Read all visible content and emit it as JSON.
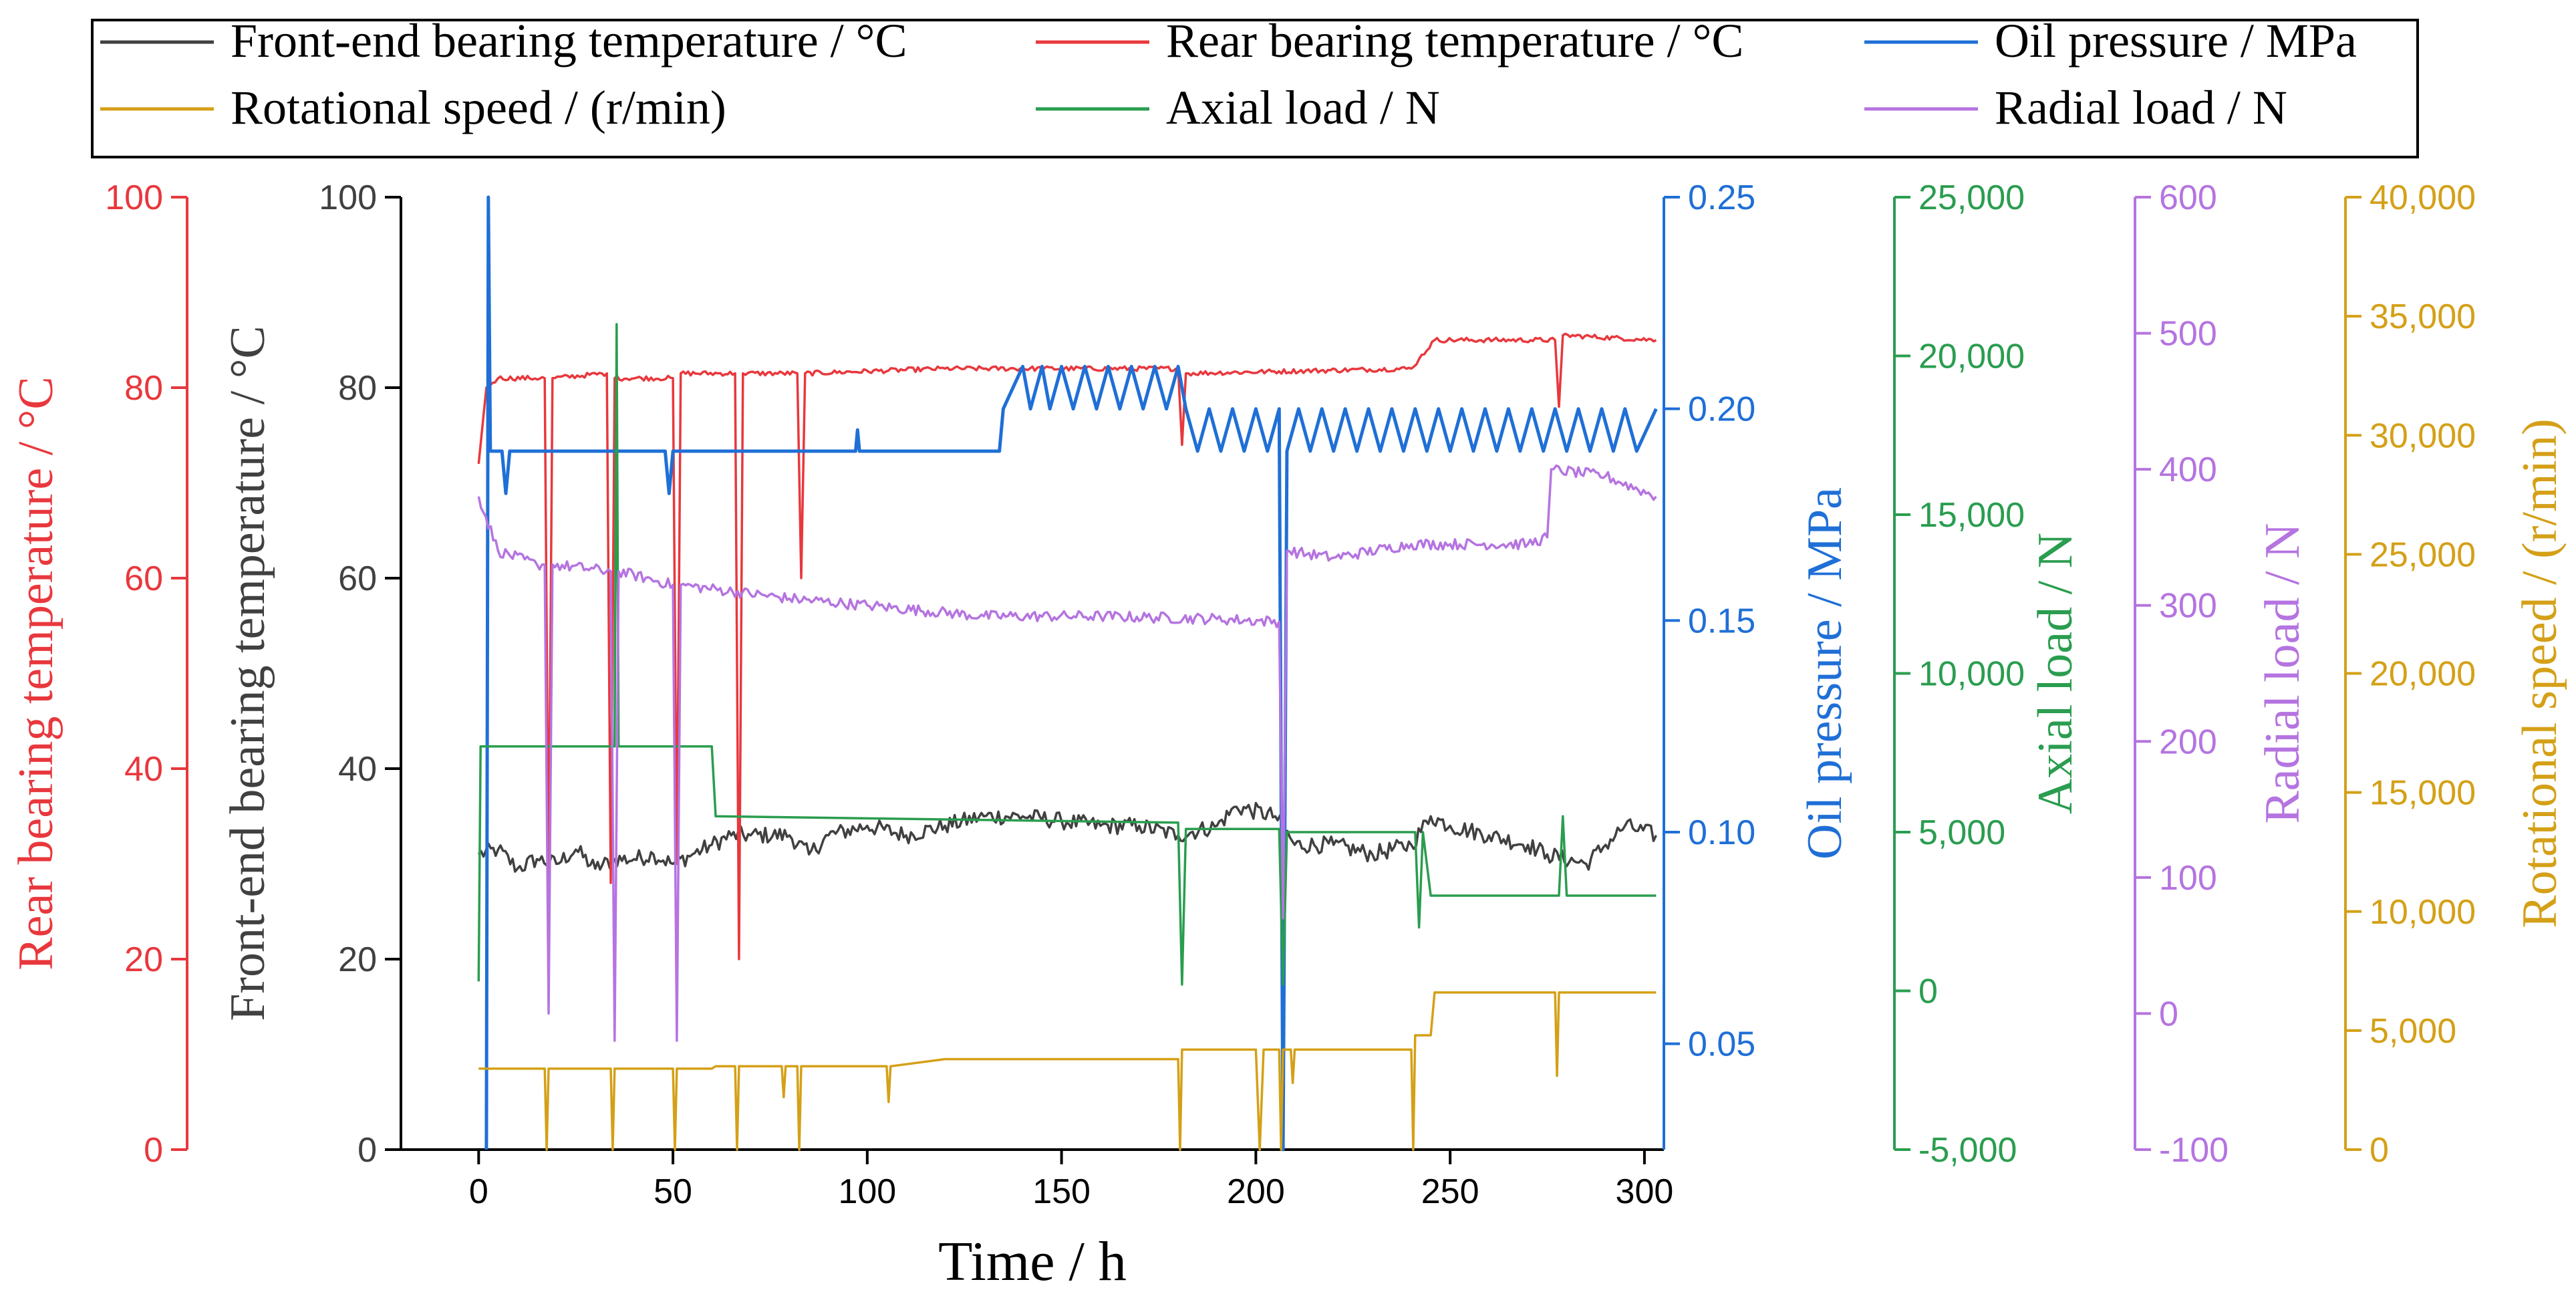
{
  "chart_data": {
    "type": "line",
    "title": "",
    "xlabel": "Time / h",
    "xlim": [
      -20,
      305
    ],
    "x_ticks": [
      0,
      50,
      100,
      150,
      200,
      250,
      300
    ],
    "legend": {
      "placement": "top",
      "entries": [
        {
          "label": "Front-end bearing temperature / °C",
          "series": "front"
        },
        {
          "label": "Rear bearing temperature / °C",
          "series": "rear"
        },
        {
          "label": "Oil pressure / MPa",
          "series": "oil"
        },
        {
          "label": "Rotational speed / (r/min)",
          "series": "speed"
        },
        {
          "label": "Axial load / N",
          "series": "axial"
        },
        {
          "label": "Radial load / N",
          "series": "radial"
        }
      ]
    },
    "axes": [
      {
        "id": "rear",
        "label": "Rear bearing temperature / °C",
        "color": "#e8383d",
        "range": [
          0,
          100
        ],
        "ticks": [
          "0",
          "20",
          "40",
          "60",
          "80",
          "100"
        ],
        "tick_values": [
          0,
          20,
          40,
          60,
          80,
          100
        ]
      },
      {
        "id": "front",
        "label": "Front-end bearing temperature / °C",
        "color": "#404040",
        "range": [
          0,
          100
        ],
        "ticks": [
          "0",
          "20",
          "40",
          "60",
          "80",
          "100"
        ],
        "tick_values": [
          0,
          20,
          40,
          60,
          80,
          100
        ]
      },
      {
        "id": "oil",
        "label": "Oil pressure / MPa",
        "color": "#1f6fd6",
        "range": [
          0.025,
          0.25
        ],
        "ticks": [
          "0.05",
          "0.10",
          "0.15",
          "0.20",
          "0.25"
        ],
        "tick_values": [
          0.05,
          0.1,
          0.15,
          0.2,
          0.25
        ]
      },
      {
        "id": "axial",
        "label": "Axial load / N",
        "color": "#2a9d4f",
        "range": [
          -5000,
          25000
        ],
        "ticks": [
          "-5,000",
          "0",
          "5,000",
          "10,000",
          "15,000",
          "20,000",
          "25,000"
        ],
        "tick_values": [
          -5000,
          0,
          5000,
          10000,
          15000,
          20000,
          25000
        ]
      },
      {
        "id": "radial",
        "label": "Radial load / N",
        "color": "#b574e0",
        "range": [
          -100,
          600
        ],
        "ticks": [
          "-100",
          "0",
          "100",
          "200",
          "300",
          "400",
          "500",
          "600"
        ],
        "tick_values": [
          -100,
          0,
          100,
          200,
          300,
          400,
          500,
          600
        ]
      },
      {
        "id": "speed",
        "label": "Rotational speed / (r/min)",
        "color": "#d4a017",
        "range": [
          0,
          40000
        ],
        "ticks": [
          "0",
          "5,000",
          "10,000",
          "15,000",
          "20,000",
          "25,000",
          "30,000",
          "35,000",
          "40,000"
        ],
        "tick_values": [
          0,
          5000,
          10000,
          15000,
          20000,
          25000,
          30000,
          35000,
          40000
        ]
      }
    ],
    "series": [
      {
        "name": "Front-end bearing temperature / °C",
        "id": "front",
        "axis": "front",
        "color": "#404040",
        "noise": 0.9,
        "points": [
          [
            0,
            31
          ],
          [
            5,
            31.5
          ],
          [
            10,
            29.5
          ],
          [
            15,
            30.5
          ],
          [
            20,
            30
          ],
          [
            25,
            31.5
          ],
          [
            30,
            29.5
          ],
          [
            35,
            30.5
          ],
          [
            40,
            30.5
          ],
          [
            45,
            31
          ],
          [
            50,
            30
          ],
          [
            55,
            31
          ],
          [
            60,
            32
          ],
          [
            65,
            33
          ],
          [
            70,
            33
          ],
          [
            80,
            33
          ],
          [
            85,
            31
          ],
          [
            90,
            33
          ],
          [
            100,
            34
          ],
          [
            110,
            33
          ],
          [
            120,
            34
          ],
          [
            130,
            35
          ],
          [
            140,
            35
          ],
          [
            150,
            34.5
          ],
          [
            160,
            34
          ],
          [
            170,
            34
          ],
          [
            180,
            33
          ],
          [
            190,
            34
          ],
          [
            195,
            36
          ],
          [
            205,
            35
          ],
          [
            210,
            32
          ],
          [
            220,
            32
          ],
          [
            230,
            31
          ],
          [
            240,
            32
          ],
          [
            245,
            35
          ],
          [
            250,
            34
          ],
          [
            260,
            33
          ],
          [
            270,
            32
          ],
          [
            275,
            31
          ],
          [
            285,
            30
          ],
          [
            290,
            32
          ],
          [
            295,
            34
          ],
          [
            303,
            33
          ]
        ]
      },
      {
        "name": "Rear bearing temperature / °C",
        "id": "rear",
        "axis": "rear",
        "color": "#e8383d",
        "noise": 0.25,
        "points": [
          [
            0,
            72
          ],
          [
            2,
            80
          ],
          [
            5,
            81
          ],
          [
            17,
            81
          ],
          [
            18,
            28
          ],
          [
            19,
            81
          ],
          [
            33,
            81.5
          ],
          [
            34,
            28
          ],
          [
            35,
            81
          ],
          [
            50,
            81
          ],
          [
            51,
            30
          ],
          [
            52,
            81.5
          ],
          [
            66,
            81.5
          ],
          [
            67,
            20
          ],
          [
            68,
            81.5
          ],
          [
            82,
            81.5
          ],
          [
            83,
            60
          ],
          [
            84,
            81.5
          ],
          [
            120,
            82
          ],
          [
            180,
            82
          ],
          [
            181,
            74
          ],
          [
            182,
            81.5
          ],
          [
            240,
            82
          ],
          [
            242,
            83
          ],
          [
            246,
            85
          ],
          [
            277,
            85
          ],
          [
            278,
            78
          ],
          [
            279,
            85.5
          ],
          [
            303,
            85
          ]
        ]
      },
      {
        "name": "Oil pressure / MPa",
        "id": "oil",
        "axis": "oil",
        "color": "#1f6fd6",
        "noise": 0,
        "points": [
          [
            2,
            0.025
          ],
          [
            2.5,
            0.25
          ],
          [
            3,
            0.19
          ],
          [
            6,
            0.19
          ],
          [
            7,
            0.18
          ],
          [
            8,
            0.19
          ],
          [
            48,
            0.19
          ],
          [
            49,
            0.18
          ],
          [
            50,
            0.19
          ],
          [
            97,
            0.19
          ],
          [
            97.5,
            0.195
          ],
          [
            98,
            0.19
          ],
          [
            134,
            0.19
          ],
          [
            135,
            0.2
          ],
          [
            140,
            0.21
          ],
          [
            142,
            0.2
          ],
          [
            145,
            0.21
          ],
          [
            147,
            0.2
          ],
          [
            150,
            0.21
          ],
          [
            153,
            0.2
          ],
          [
            156,
            0.21
          ],
          [
            159,
            0.2
          ],
          [
            162,
            0.21
          ],
          [
            165,
            0.2
          ],
          [
            168,
            0.21
          ],
          [
            171,
            0.2
          ],
          [
            174,
            0.21
          ],
          [
            177,
            0.2
          ],
          [
            180,
            0.21
          ],
          [
            182,
            0.2
          ],
          [
            185,
            0.19
          ],
          [
            188,
            0.2
          ],
          [
            191,
            0.19
          ],
          [
            194,
            0.2
          ],
          [
            197,
            0.19
          ],
          [
            200,
            0.2
          ],
          [
            203,
            0.19
          ],
          [
            206,
            0.2
          ],
          [
            207,
            0.025
          ],
          [
            208,
            0.19
          ],
          [
            211,
            0.2
          ],
          [
            214,
            0.19
          ],
          [
            217,
            0.2
          ],
          [
            220,
            0.19
          ],
          [
            223,
            0.2
          ],
          [
            226,
            0.19
          ],
          [
            229,
            0.2
          ],
          [
            232,
            0.19
          ],
          [
            235,
            0.2
          ],
          [
            238,
            0.19
          ],
          [
            241,
            0.2
          ],
          [
            244,
            0.19
          ],
          [
            247,
            0.2
          ],
          [
            250,
            0.19
          ],
          [
            253,
            0.2
          ],
          [
            256,
            0.19
          ],
          [
            259,
            0.2
          ],
          [
            262,
            0.19
          ],
          [
            265,
            0.2
          ],
          [
            268,
            0.19
          ],
          [
            271,
            0.2
          ],
          [
            274,
            0.19
          ],
          [
            277,
            0.2
          ],
          [
            280,
            0.19
          ],
          [
            283,
            0.2
          ],
          [
            286,
            0.19
          ],
          [
            289,
            0.2
          ],
          [
            292,
            0.19
          ],
          [
            295,
            0.2
          ],
          [
            298,
            0.19
          ],
          [
            303,
            0.2
          ]
        ]
      },
      {
        "name": "Axial load / N",
        "id": "axial",
        "axis": "axial",
        "color": "#2a9d4f",
        "noise": 0,
        "points": [
          [
            0,
            300
          ],
          [
            0.5,
            7700
          ],
          [
            35,
            7700
          ],
          [
            35.5,
            21000
          ],
          [
            36,
            7700
          ],
          [
            60,
            7700
          ],
          [
            61,
            5500
          ],
          [
            180,
            5300
          ],
          [
            181,
            200
          ],
          [
            182,
            5100
          ],
          [
            206,
            5100
          ],
          [
            207,
            200
          ],
          [
            208,
            5000
          ],
          [
            241,
            5000
          ],
          [
            242,
            2000
          ],
          [
            243,
            5000
          ],
          [
            245,
            3000
          ],
          [
            278,
            3000
          ],
          [
            279,
            5500
          ],
          [
            280,
            3000
          ],
          [
            303,
            3000
          ]
        ]
      },
      {
        "name": "Radial load / N",
        "id": "radial",
        "axis": "radial",
        "color": "#b574e0",
        "noise": 4,
        "points": [
          [
            0,
            380
          ],
          [
            5,
            340
          ],
          [
            15,
            330
          ],
          [
            17,
            330
          ],
          [
            18,
            0
          ],
          [
            19,
            330
          ],
          [
            34,
            325
          ],
          [
            35,
            -20
          ],
          [
            36,
            325
          ],
          [
            50,
            315
          ],
          [
            51,
            -20
          ],
          [
            52,
            315
          ],
          [
            80,
            305
          ],
          [
            100,
            300
          ],
          [
            130,
            292
          ],
          [
            160,
            292
          ],
          [
            190,
            290
          ],
          [
            206,
            288
          ],
          [
            207,
            70
          ],
          [
            208,
            340
          ],
          [
            220,
            335
          ],
          [
            240,
            345
          ],
          [
            250,
            345
          ],
          [
            270,
            345
          ],
          [
            275,
            350
          ],
          [
            276,
            400
          ],
          [
            290,
            395
          ],
          [
            303,
            380
          ]
        ]
      },
      {
        "name": "Rotational speed / (r/min)",
        "id": "speed",
        "axis": "speed",
        "color": "#d4a017",
        "noise": 0,
        "points": [
          [
            0,
            3400
          ],
          [
            17,
            3400
          ],
          [
            17.5,
            0
          ],
          [
            18,
            3400
          ],
          [
            34,
            3400
          ],
          [
            34.5,
            0
          ],
          [
            35,
            3400
          ],
          [
            50,
            3400
          ],
          [
            50.5,
            0
          ],
          [
            51,
            3400
          ],
          [
            60,
            3400
          ],
          [
            61,
            3500
          ],
          [
            66,
            3500
          ],
          [
            66.5,
            0
          ],
          [
            67,
            3500
          ],
          [
            78,
            3500
          ],
          [
            78.5,
            2200
          ],
          [
            79,
            3500
          ],
          [
            82,
            3500
          ],
          [
            82.5,
            0
          ],
          [
            83,
            3500
          ],
          [
            105,
            3500
          ],
          [
            105.5,
            2000
          ],
          [
            106,
            3500
          ],
          [
            120,
            3800
          ],
          [
            180,
            3800
          ],
          [
            180.5,
            0
          ],
          [
            181,
            4200
          ],
          [
            200,
            4200
          ],
          [
            201,
            0
          ],
          [
            202,
            4200
          ],
          [
            206,
            4200
          ],
          [
            206.5,
            0
          ],
          [
            207,
            4200
          ],
          [
            209,
            4200
          ],
          [
            209.5,
            2800
          ],
          [
            210,
            4200
          ],
          [
            240,
            4200
          ],
          [
            240.5,
            0
          ],
          [
            241,
            4800
          ],
          [
            245,
            4800
          ],
          [
            246,
            6600
          ],
          [
            277,
            6600
          ],
          [
            277.5,
            3100
          ],
          [
            278,
            6600
          ],
          [
            303,
            6600
          ]
        ]
      }
    ]
  }
}
